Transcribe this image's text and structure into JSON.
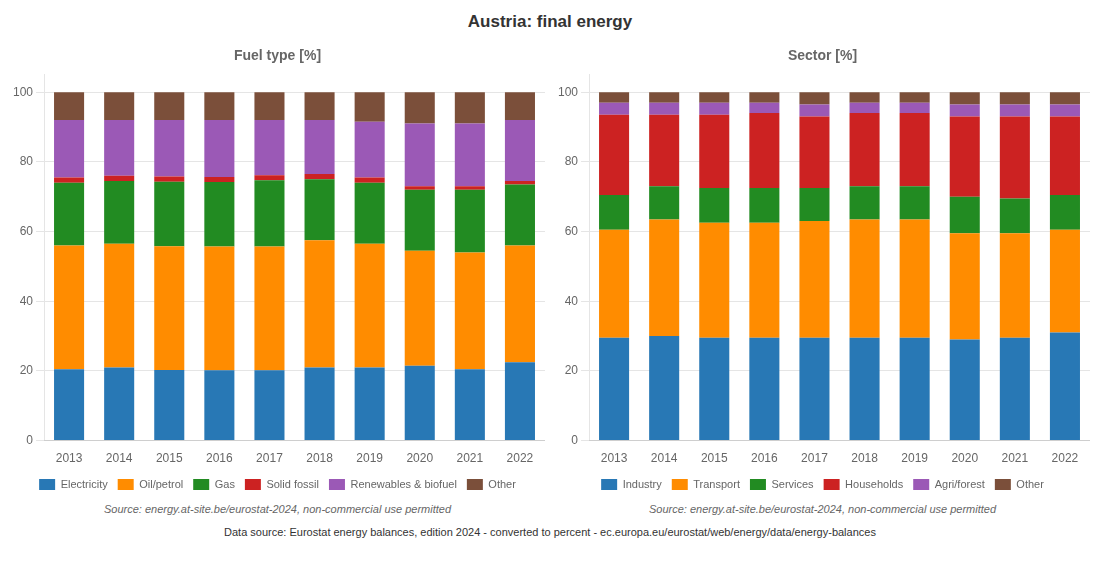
{
  "title": "Austria: final energy",
  "annotations": [
    "Data source: Eurostat energy balances, edition 2024 - converted to percent - ec.europa.eu/eurostat/web/energy/data/energy-balances"
  ],
  "chart_data": [
    {
      "type": "bar",
      "stacked": true,
      "title": "Fuel type [%]",
      "annotations": [
        "Source: energy.at-site.be/eurostat-2024, non-commercial use permitted"
      ],
      "categories": [
        "2013",
        "2014",
        "2015",
        "2016",
        "2017",
        "2018",
        "2019",
        "2020",
        "2021",
        "2022"
      ],
      "series": [
        {
          "name": "Electricity",
          "color": "#2878b5",
          "values": [
            20.5,
            21.0,
            20.3,
            20.2,
            20.2,
            21.0,
            21.0,
            21.5,
            20.5,
            22.5
          ]
        },
        {
          "name": "Oil/petrol",
          "color": "#ff8c00",
          "values": [
            35.5,
            35.5,
            35.5,
            35.5,
            35.5,
            36.5,
            35.5,
            33.0,
            33.5,
            33.5
          ]
        },
        {
          "name": "Gas",
          "color": "#228b22",
          "values": [
            18.0,
            18.0,
            18.5,
            18.5,
            19.0,
            17.5,
            17.5,
            17.5,
            18.0,
            17.5
          ]
        },
        {
          "name": "Solid fossil",
          "color": "#cc2222",
          "values": [
            1.5,
            1.5,
            1.5,
            1.5,
            1.5,
            1.5,
            1.5,
            1.0,
            1.0,
            1.0
          ]
        },
        {
          "name": "Renewables & biofuel",
          "color": "#9b59b6",
          "values": [
            16.5,
            16.0,
            16.2,
            16.3,
            15.8,
            15.5,
            16.0,
            18.0,
            18.0,
            17.5
          ]
        },
        {
          "name": "Other",
          "color": "#7b4f3a",
          "values": [
            8.0,
            8.0,
            8.0,
            8.0,
            8.0,
            8.0,
            8.5,
            9.0,
            9.0,
            8.0
          ]
        }
      ],
      "ylim": [
        0,
        105
      ],
      "yticks": [
        0,
        20,
        40,
        60,
        80,
        100
      ],
      "grid": true,
      "legend": "bottom"
    },
    {
      "type": "bar",
      "stacked": true,
      "title": "Sector [%]",
      "annotations": [
        "Source: energy.at-site.be/eurostat-2024, non-commercial use permitted"
      ],
      "categories": [
        "2013",
        "2014",
        "2015",
        "2016",
        "2017",
        "2018",
        "2019",
        "2020",
        "2021",
        "2022"
      ],
      "series": [
        {
          "name": "Industry",
          "color": "#2878b5",
          "values": [
            29.5,
            30.0,
            29.5,
            29.5,
            29.5,
            29.5,
            29.5,
            29.0,
            29.5,
            31.0
          ]
        },
        {
          "name": "Transport",
          "color": "#ff8c00",
          "values": [
            31.0,
            33.5,
            33.0,
            33.0,
            33.5,
            34.0,
            34.0,
            30.5,
            30.0,
            29.5
          ]
        },
        {
          "name": "Services",
          "color": "#228b22",
          "values": [
            10.0,
            9.5,
            10.0,
            10.0,
            9.5,
            9.5,
            9.5,
            10.5,
            10.0,
            10.0
          ]
        },
        {
          "name": "Households",
          "color": "#cc2222",
          "values": [
            23.0,
            20.5,
            21.0,
            21.5,
            20.5,
            21.0,
            21.0,
            23.0,
            23.5,
            22.5
          ]
        },
        {
          "name": "Agri/forest",
          "color": "#9b59b6",
          "values": [
            3.5,
            3.5,
            3.5,
            3.0,
            3.5,
            3.0,
            3.0,
            3.5,
            3.5,
            3.5
          ]
        },
        {
          "name": "Other",
          "color": "#7b4f3a",
          "values": [
            3.0,
            3.0,
            3.0,
            3.0,
            3.5,
            3.0,
            3.0,
            3.5,
            3.5,
            3.5
          ]
        }
      ],
      "ylim": [
        0,
        105
      ],
      "yticks": [
        0,
        20,
        40,
        60,
        80,
        100
      ],
      "grid": true,
      "legend": "bottom"
    }
  ]
}
